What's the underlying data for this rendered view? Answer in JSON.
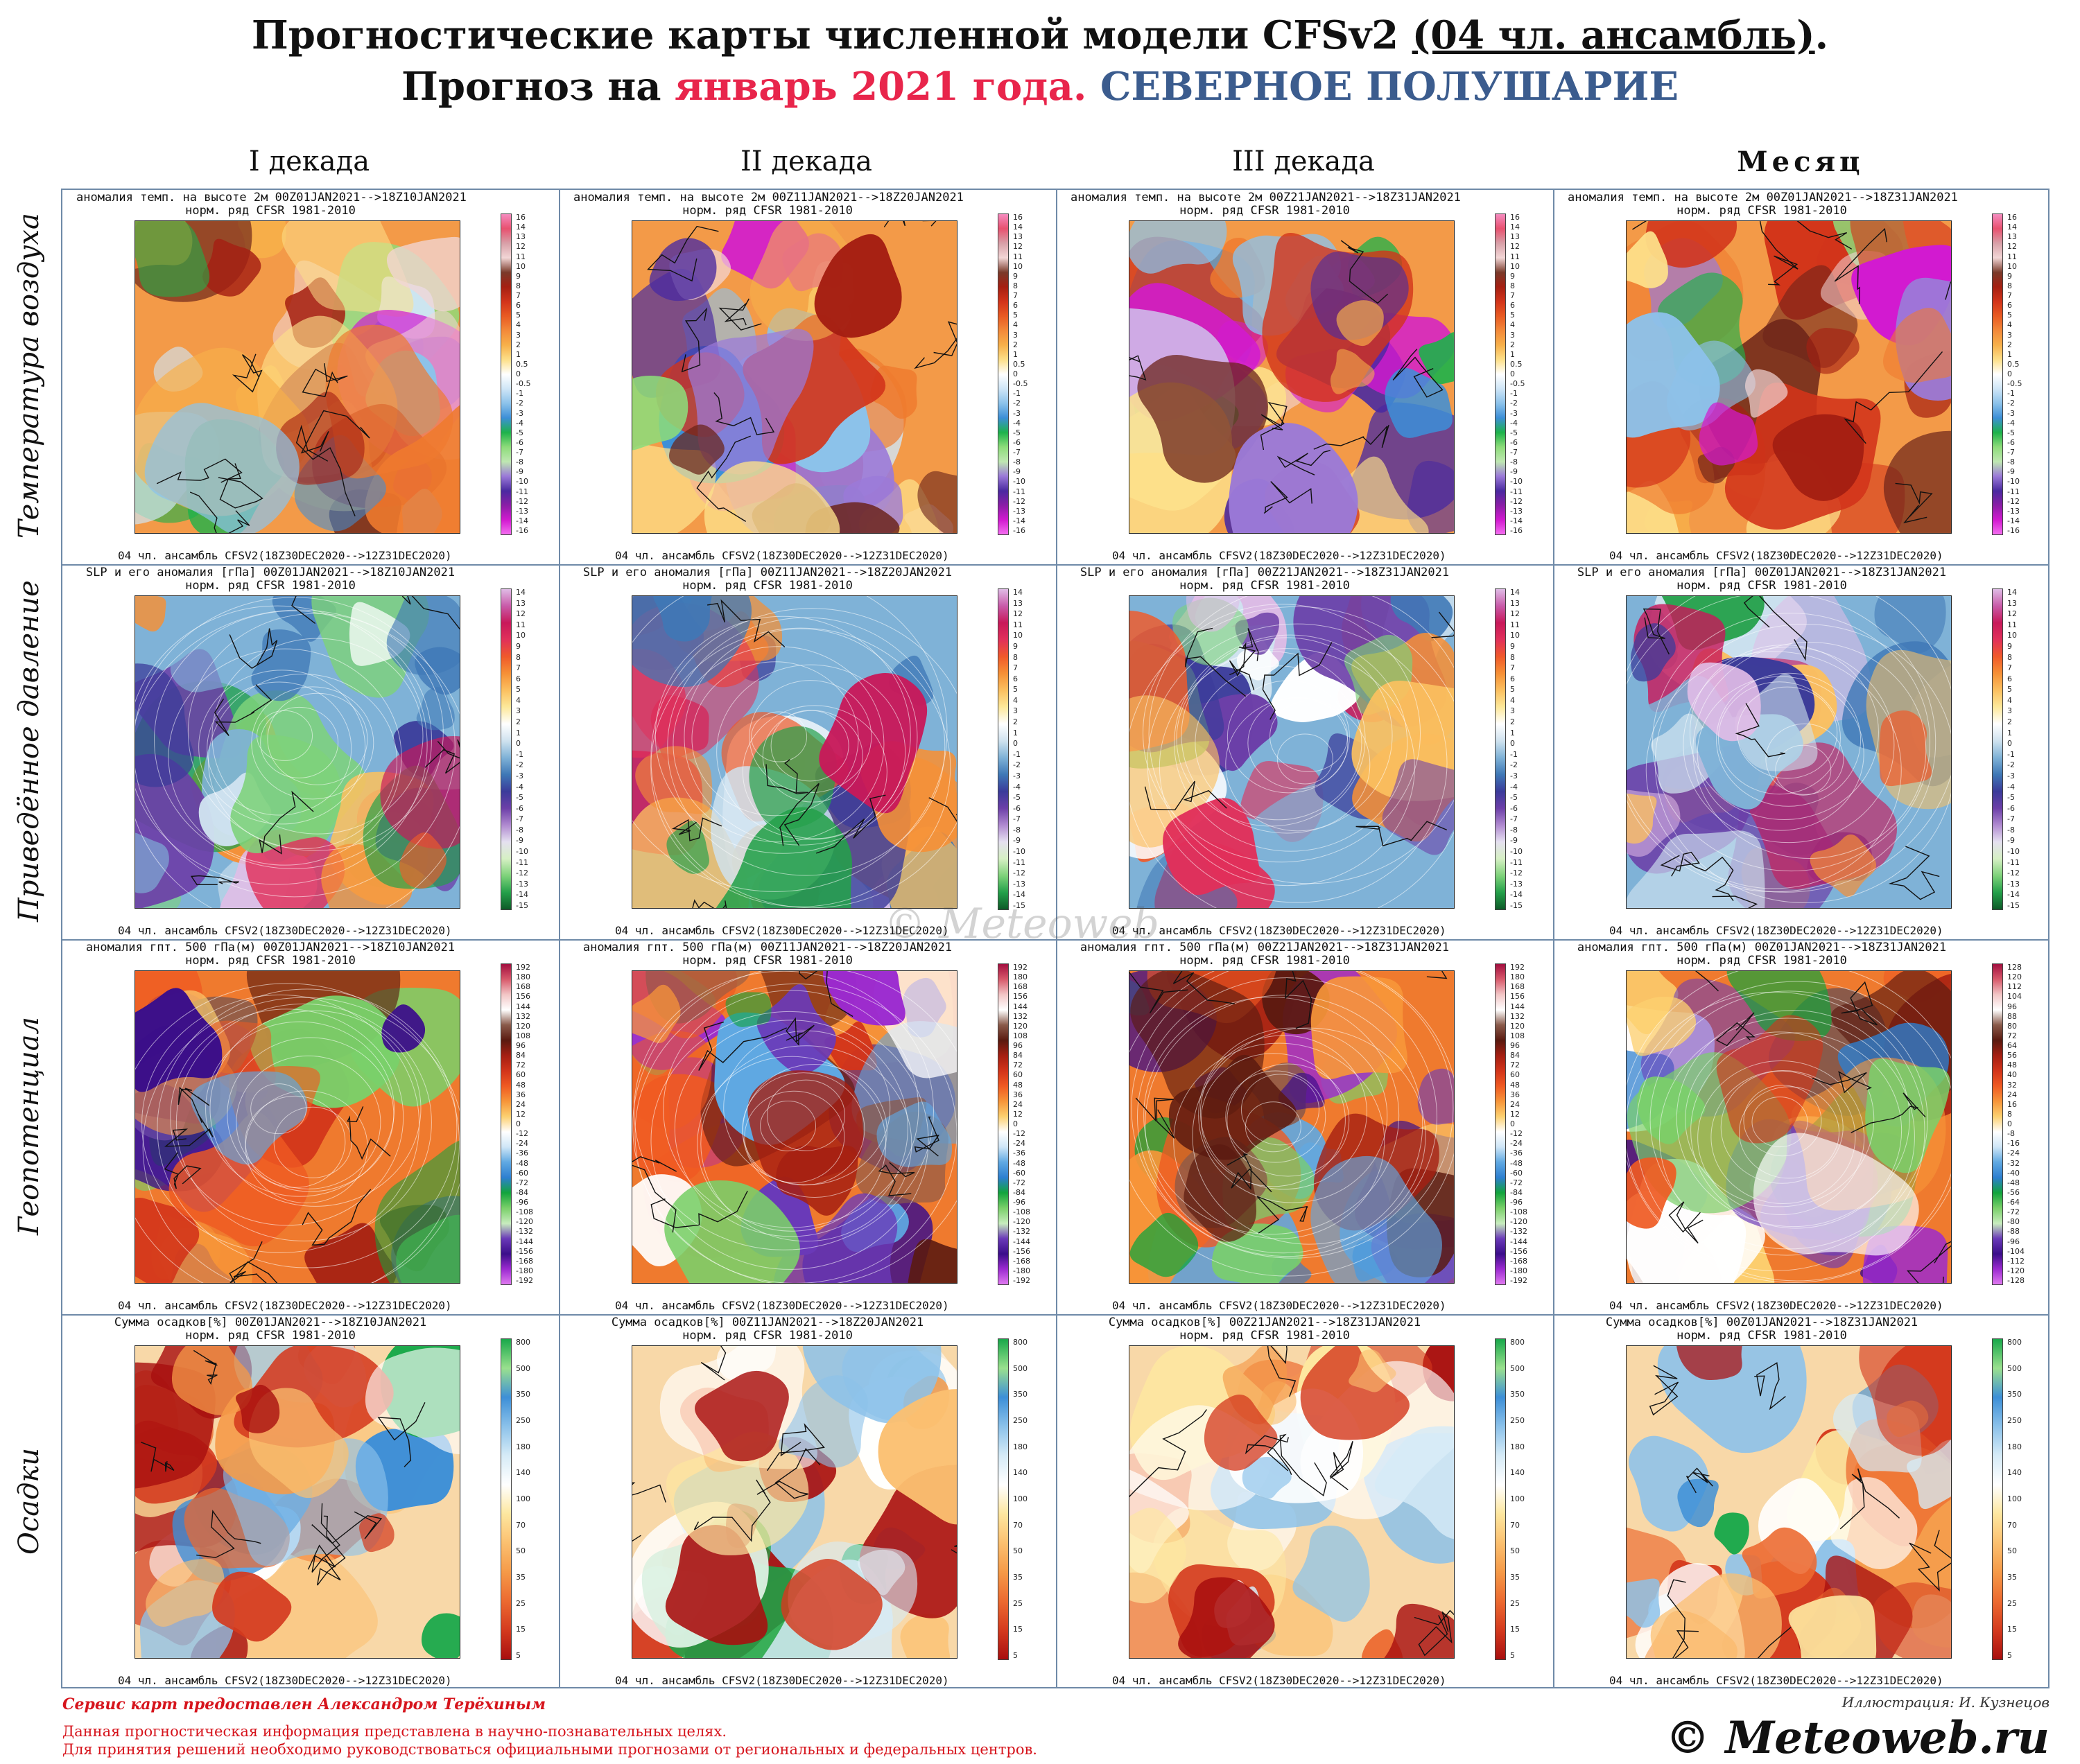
{
  "header": {
    "line1_a": "Прогностические карты численной модели CFSv2 ",
    "line1_b": "(04 чл. ансамбль)",
    "line1_c": ".",
    "line2_a": "Прогноз на ",
    "line2_b": "январь 2021 года.",
    "line2_c": " СЕВЕРНОЕ ПОЛУШАРИЕ"
  },
  "columns": [
    "I декада",
    "II декада",
    "III декада",
    "Месяц"
  ],
  "rows": [
    "Температура воздуха",
    "Приведённое давление",
    "Геопотенциал",
    "Осадки"
  ],
  "panel_footer": "04 чл. ансамбль CFSV2(18Z30DEC2020-->12Z31DEC2020)",
  "panels": [
    [
      "аномалия темп. на высоте 2м 00Z01JAN2021-->18Z10JAN2021",
      "аномалия темп. на высоте 2м 00Z11JAN2021-->18Z20JAN2021",
      "аномалия темп. на высоте 2м 00Z21JAN2021-->18Z31JAN2021",
      "аномалия темп. на высоте 2м 00Z01JAN2021-->18Z31JAN2021"
    ],
    [
      "SLP и его аномалия [гПа] 00Z01JAN2021-->18Z10JAN2021",
      "SLP и его аномалия [гПа] 00Z11JAN2021-->18Z20JAN2021",
      "SLP и его аномалия [гПа] 00Z21JAN2021-->18Z31JAN2021",
      "SLP и его аномалия [гПа] 00Z01JAN2021-->18Z31JAN2021"
    ],
    [
      "аномалия гпт. 500 гПа(м) 00Z01JAN2021-->18Z10JAN2021",
      "аномалия гпт. 500 гПа(м) 00Z11JAN2021-->18Z20JAN2021",
      "аномалия гпт. 500 гПа(м) 00Z21JAN2021-->18Z31JAN2021",
      "аномалия гпт. 500 гПа(м) 00Z01JAN2021-->18Z31JAN2021"
    ],
    [
      "Сумма осадков[%] 00Z01JAN2021-->18Z10JAN2021",
      "Сумма осадков[%] 00Z11JAN2021-->18Z20JAN2021",
      "Сумма осадков[%] 00Z21JAN2021-->18Z31JAN2021",
      "Сумма осадков[%] 00Z01JAN2021-->18Z31JAN2021"
    ]
  ],
  "norm_line": "норм. ряд CFSR 1981-2010",
  "scales": {
    "temp": [
      "16",
      "14",
      "13",
      "12",
      "11",
      "10",
      "9",
      "8",
      "7",
      "6",
      "5",
      "4",
      "3",
      "2",
      "1",
      "0.5",
      "0",
      "-0.5",
      "-1",
      "-2",
      "-3",
      "-4",
      "-5",
      "-6",
      "-7",
      "-8",
      "-9",
      "-10",
      "-11",
      "-12",
      "-13",
      "-14",
      "-16"
    ],
    "slp": [
      "14",
      "13",
      "12",
      "11",
      "10",
      "9",
      "8",
      "7",
      "6",
      "5",
      "4",
      "3",
      "2",
      "1",
      "0",
      "-1",
      "-2",
      "-3",
      "-4",
      "-5",
      "-6",
      "-7",
      "-8",
      "-9",
      "-10",
      "-11",
      "-12",
      "-13",
      "-14",
      "-15"
    ],
    "gpt": [
      "192",
      "180",
      "168",
      "156",
      "144",
      "132",
      "120",
      "108",
      "96",
      "84",
      "72",
      "60",
      "48",
      "36",
      "24",
      "12",
      "0",
      "-12",
      "-24",
      "-36",
      "-48",
      "-60",
      "-72",
      "-84",
      "-96",
      "-108",
      "-120",
      "-132",
      "-144",
      "-156",
      "-168",
      "-180",
      "-192"
    ],
    "gpt_month": [
      "128",
      "120",
      "112",
      "104",
      "96",
      "88",
      "80",
      "72",
      "64",
      "56",
      "48",
      "40",
      "32",
      "24",
      "16",
      "8",
      "0",
      "-8",
      "-16",
      "-24",
      "-32",
      "-40",
      "-48",
      "-56",
      "-64",
      "-72",
      "-80",
      "-88",
      "-96",
      "-104",
      "-112",
      "-120",
      "-128"
    ],
    "precip": [
      "800",
      "500",
      "350",
      "250",
      "180",
      "140",
      "100",
      "70",
      "50",
      "35",
      "25",
      "15",
      "5"
    ]
  },
  "colorbars": {
    "temp": [
      "#f58cc0",
      "#e8516f",
      "#d8a0a8",
      "#f2d6d6",
      "#7a3a2a",
      "#a51f12",
      "#d2341a",
      "#e85a22",
      "#f38a3a",
      "#f7b04a",
      "#fde08a",
      "#ffffff",
      "#cfe6f7",
      "#8cc2ea",
      "#3d8fd7",
      "#1db24a",
      "#8ddc7a",
      "#bfe7b2",
      "#9b7ad8",
      "#4a2aa0",
      "#8a1ea6",
      "#d21ad0",
      "#f46ef0"
    ],
    "slp": [
      "#e0bce6",
      "#c85aa8",
      "#c8195a",
      "#e1305a",
      "#f05a2a",
      "#f69036",
      "#fbc060",
      "#fde89a",
      "#ffffff",
      "#cfe2ef",
      "#7fb2d7",
      "#3f78b6",
      "#3b3b9a",
      "#6c3fa8",
      "#b08ad0",
      "#e5e0f0",
      "#d6f0c4",
      "#7ed27a",
      "#24a04a",
      "#0e5a28"
    ],
    "gpt": [
      "#a30f3f",
      "#d85a6c",
      "#f2c6c6",
      "#ffffff",
      "#8a5a4a",
      "#5a1a10",
      "#a51f12",
      "#d2341a",
      "#ef5a22",
      "#f7963a",
      "#fcd070",
      "#ffffff",
      "#cfe6f7",
      "#5fa8e2",
      "#2d7fd0",
      "#12a43c",
      "#7ad06a",
      "#c8ecbe",
      "#6a3ab8",
      "#3b0e8a",
      "#9b2ad0",
      "#e07af0"
    ],
    "precip": [
      "#18a84a",
      "#9ae08e",
      "#3d8fd7",
      "#8cc2ea",
      "#d6ebf7",
      "#ffffff",
      "#fde7a0",
      "#fbc070",
      "#f59a48",
      "#ec6a30",
      "#d43a1e",
      "#a80f0f"
    ]
  },
  "footer": {
    "author": "Сервис карт предоставлен Александром Терёхиным",
    "illustration": "Иллюстрация: И. Кузнецов",
    "note1": "Данная прогностическая информация представлена в научно-познавательных целях.",
    "note2": "Для принятия решений необходимо руководствоваться официальными прогнозами от региональных и федеральных центров.",
    "copyright": "© Meteoweb.ru",
    "watermark": "© Meteoweb"
  }
}
